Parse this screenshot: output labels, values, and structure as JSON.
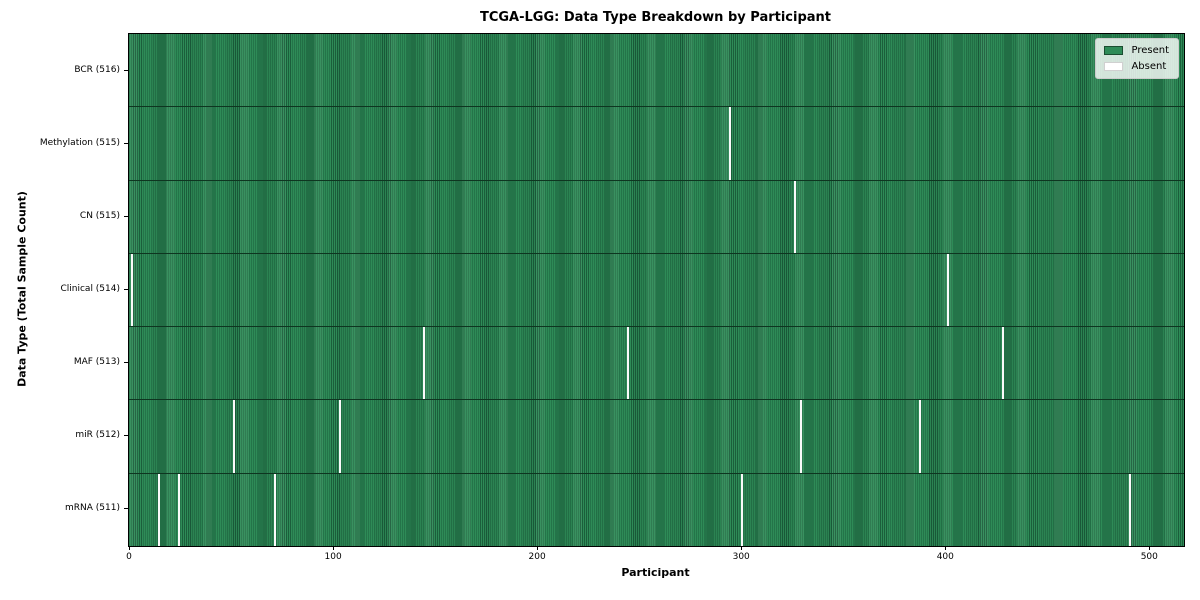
{
  "title": "TCGA-LGG: Data Type Breakdown by Participant",
  "xlabel": "Participant",
  "ylabel": "Data Type (Total Sample Count)",
  "legend": {
    "present_label": "Present",
    "absent_label": "Absent"
  },
  "colors": {
    "present": "#2e8b57",
    "present_edge": "#1b5e3b",
    "present_swatch_edge": "#1a4d30",
    "absent": "#fafafa",
    "absent_swatch_edge": "#d0d0d0",
    "row_divider": "#0e3520",
    "spine": "#000000"
  },
  "chart_data": {
    "type": "heatmap",
    "title": "TCGA-LGG: Data Type Breakdown by Participant",
    "xlabel": "Participant",
    "ylabel": "Data Type (Total Sample Count)",
    "legend_position": "upper right",
    "legend_entries": [
      {
        "label": "Present",
        "color": "#2e8b57"
      },
      {
        "label": "Absent",
        "color": "#ffffff"
      }
    ],
    "n_participants": 516,
    "xlim": [
      -0.5,
      516.5
    ],
    "x_ticks": [
      0,
      100,
      200,
      300,
      400,
      500
    ],
    "grid": false,
    "rows": [
      {
        "label": "BCR (516)",
        "data_type": "BCR",
        "sample_count": 516,
        "absent_participants": []
      },
      {
        "label": "Methylation (515)",
        "data_type": "Methylation",
        "sample_count": 515,
        "absent_participants": [
          294
        ]
      },
      {
        "label": "CN (515)",
        "data_type": "CN",
        "sample_count": 515,
        "absent_participants": [
          326
        ]
      },
      {
        "label": "Clinical (514)",
        "data_type": "Clinical",
        "sample_count": 514,
        "absent_participants": [
          1,
          401
        ]
      },
      {
        "label": "MAF (513)",
        "data_type": "MAF",
        "sample_count": 513,
        "absent_participants": [
          144,
          244,
          428
        ]
      },
      {
        "label": "miR (512)",
        "data_type": "miR",
        "sample_count": 512,
        "absent_participants": [
          51,
          103,
          329,
          387
        ]
      },
      {
        "label": "mRNA (511)",
        "data_type": "mRNA",
        "sample_count": 511,
        "absent_participants": [
          14,
          24,
          71,
          300,
          490
        ]
      }
    ]
  }
}
